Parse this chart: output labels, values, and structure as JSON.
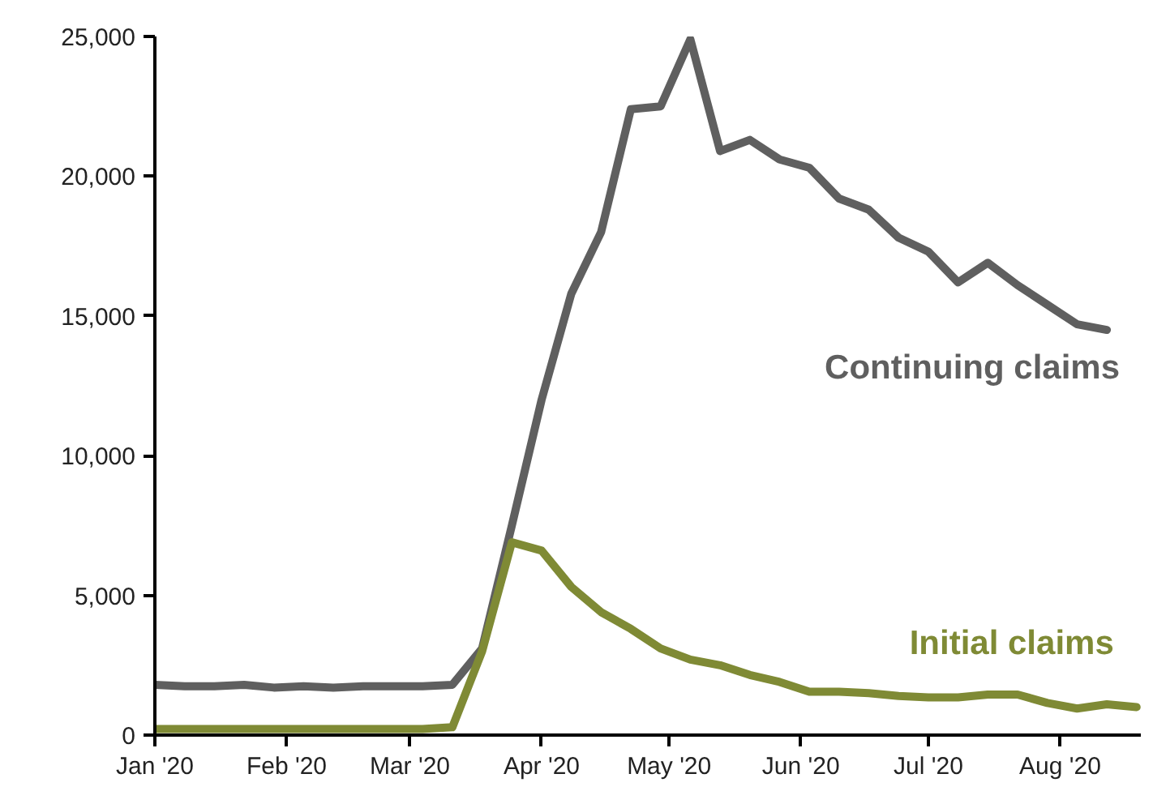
{
  "chart_data": {
    "type": "line",
    "x": [
      "2020-01-01",
      "2020-01-08",
      "2020-01-15",
      "2020-01-22",
      "2020-01-29",
      "2020-02-05",
      "2020-02-12",
      "2020-02-19",
      "2020-02-26",
      "2020-03-04",
      "2020-03-11",
      "2020-03-18",
      "2020-03-25",
      "2020-04-01",
      "2020-04-08",
      "2020-04-15",
      "2020-04-22",
      "2020-04-29",
      "2020-05-06",
      "2020-05-13",
      "2020-05-20",
      "2020-05-27",
      "2020-06-03",
      "2020-06-10",
      "2020-06-17",
      "2020-06-24",
      "2020-07-01",
      "2020-07-08",
      "2020-07-15",
      "2020-07-22",
      "2020-07-29",
      "2020-08-05",
      "2020-08-12",
      "2020-08-19"
    ],
    "series": [
      {
        "name": "Continuing claims",
        "color": "#5f5f5f",
        "values": [
          1800,
          1750,
          1750,
          1800,
          1700,
          1750,
          1700,
          1750,
          1750,
          1750,
          1800,
          3100,
          7500,
          12000,
          15800,
          18000,
          22400,
          22500,
          24900,
          20900,
          21300,
          20600,
          20300,
          19200,
          18800,
          17800,
          17300,
          16200,
          16900,
          16100,
          15400,
          14700,
          14500,
          null
        ]
      },
      {
        "name": "Initial claims",
        "color": "#7f8a35",
        "values": [
          220,
          220,
          220,
          220,
          220,
          220,
          220,
          220,
          220,
          220,
          280,
          3000,
          6900,
          6600,
          5300,
          4400,
          3800,
          3100,
          2700,
          2500,
          2150,
          1900,
          1550,
          1550,
          1500,
          1400,
          1350,
          1350,
          1450,
          1450,
          1150,
          950,
          1100,
          1000
        ]
      }
    ],
    "xlim": [
      "2020-01-01",
      "2020-08-20"
    ],
    "xticks": [
      {
        "value": "2020-01-01",
        "label": "Jan '20"
      },
      {
        "value": "2020-02-01",
        "label": "Feb '20"
      },
      {
        "value": "2020-03-01",
        "label": "Mar '20"
      },
      {
        "value": "2020-04-01",
        "label": "Apr '20"
      },
      {
        "value": "2020-05-01",
        "label": "May '20"
      },
      {
        "value": "2020-06-01",
        "label": "Jun '20"
      },
      {
        "value": "2020-07-01",
        "label": "Jul '20"
      },
      {
        "value": "2020-08-01",
        "label": "Aug '20"
      }
    ],
    "ylim": [
      0,
      25000
    ],
    "yticks": [
      0,
      {
        "value": 5000,
        "label": "5,000"
      },
      {
        "value": 10000,
        "label": "10,000"
      },
      {
        "value": 15000,
        "label": "15,000"
      },
      {
        "value": 20000,
        "label": "20,000"
      },
      {
        "value": 25000,
        "label": "25,000"
      }
    ],
    "grid": false,
    "line_style": "solid"
  }
}
